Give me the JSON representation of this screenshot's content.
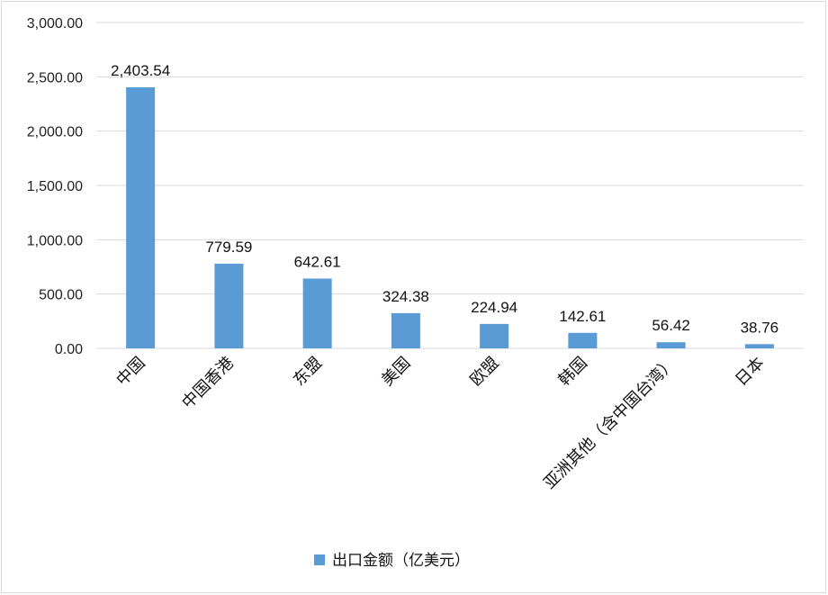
{
  "chart_data": {
    "type": "bar",
    "categories": [
      "中国",
      "中国香港",
      "东盟",
      "美国",
      "欧盟",
      "韩国",
      "亚洲其他（含中国台湾）",
      "日本"
    ],
    "series": [
      {
        "name": "出口金额（亿美元）",
        "values": [
          2403.54,
          779.59,
          642.61,
          324.38,
          224.94,
          142.61,
          56.42,
          38.76
        ],
        "labels": [
          "2,403.54",
          "779.59",
          "642.61",
          "324.38",
          "224.94",
          "142.61",
          "56.42",
          "38.76"
        ]
      }
    ],
    "ylim": [
      0,
      3000
    ],
    "yticks": [
      "0.00",
      "500.00",
      "1,000.00",
      "1,500.00",
      "2,000.00",
      "2,500.00",
      "3,000.00"
    ],
    "grid": true,
    "legend": "bottom",
    "colors": {
      "bar": "#5b9bd5",
      "grid": "#d9d9d9"
    }
  }
}
